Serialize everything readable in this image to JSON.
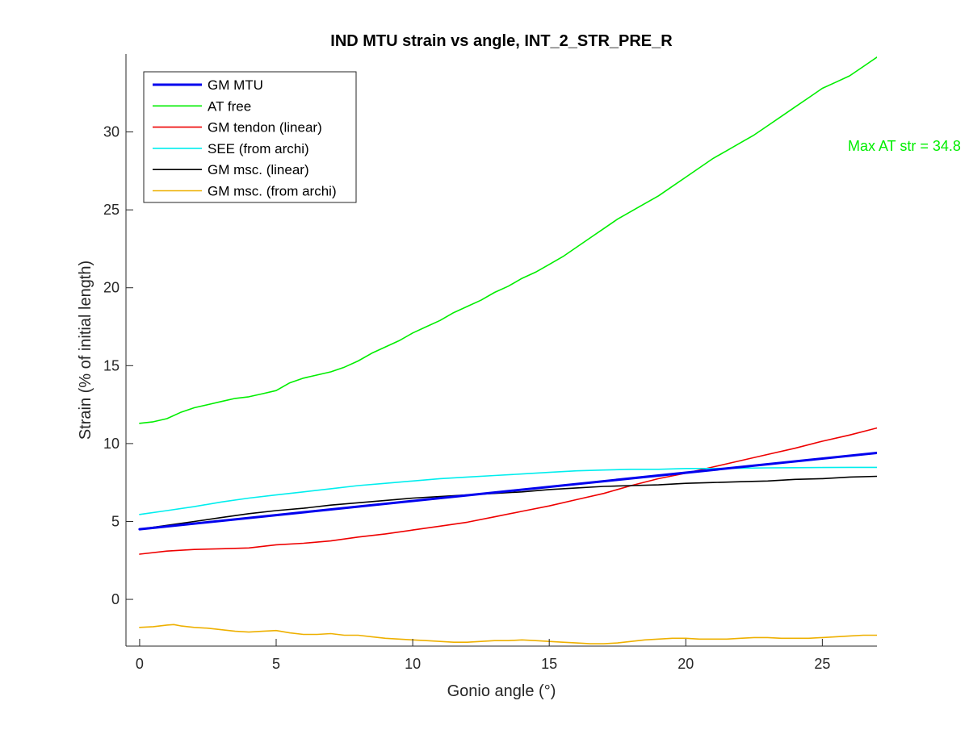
{
  "figure": {
    "background": "#ffffff"
  },
  "chart_data": {
    "type": "line",
    "title": "IND MTU strain vs angle, INT_2_STR_PRE_R",
    "xlabel": "Gonio angle (°)",
    "ylabel": "Strain (% of initial length)",
    "xlim": [
      -0.5,
      27
    ],
    "ylim": [
      -3,
      35
    ],
    "xticks": [
      0,
      5,
      10,
      15,
      20,
      25
    ],
    "yticks": [
      0,
      5,
      10,
      15,
      20,
      25,
      30
    ],
    "grid": false,
    "legend_position": "top-left",
    "annotation": {
      "text": "Max AT str = 34.8",
      "color": "#00ee00"
    },
    "series": [
      {
        "name": "GM MTU",
        "color": "#0000ee",
        "emphasis": "thick",
        "x": [
          0,
          27
        ],
        "y": [
          4.5,
          9.4
        ]
      },
      {
        "name": "AT free",
        "color": "#00ee00",
        "x": [
          0,
          0.5,
          1,
          1.5,
          2,
          2.5,
          3,
          3.5,
          4,
          4.5,
          5,
          5.5,
          6,
          6.5,
          7,
          7.5,
          8,
          8.5,
          9,
          9.5,
          10,
          10.5,
          11,
          11.5,
          12,
          12.5,
          13,
          13.5,
          14,
          14.5,
          15,
          15.5,
          16,
          16.5,
          17,
          17.5,
          18,
          18.5,
          19,
          19.5,
          20,
          20.5,
          21,
          21.5,
          22,
          22.5,
          23,
          23.5,
          24,
          24.5,
          25,
          25.5,
          26,
          26.5,
          27
        ],
        "y": [
          11.3,
          11.4,
          11.6,
          12.0,
          12.3,
          12.5,
          12.7,
          12.9,
          13.0,
          13.2,
          13.4,
          13.9,
          14.2,
          14.4,
          14.6,
          14.9,
          15.3,
          15.8,
          16.2,
          16.6,
          17.1,
          17.5,
          17.9,
          18.4,
          18.8,
          19.2,
          19.7,
          20.1,
          20.6,
          21.0,
          21.5,
          22.0,
          22.6,
          23.2,
          23.8,
          24.4,
          24.9,
          25.4,
          25.9,
          26.5,
          27.1,
          27.7,
          28.3,
          28.8,
          29.3,
          29.8,
          30.4,
          31.0,
          31.6,
          32.2,
          32.8,
          33.2,
          33.6,
          34.2,
          34.8
        ]
      },
      {
        "name": "GM tendon (linear)",
        "color": "#ee0000",
        "x": [
          0,
          1,
          2,
          3,
          4,
          5,
          6,
          7,
          8,
          9,
          10,
          11,
          12,
          13,
          14,
          15,
          16,
          17,
          18,
          19,
          20,
          21,
          22,
          23,
          24,
          25,
          26,
          27
        ],
        "y": [
          2.9,
          3.1,
          3.2,
          3.25,
          3.3,
          3.5,
          3.6,
          3.75,
          4.0,
          4.2,
          4.45,
          4.7,
          4.95,
          5.3,
          5.65,
          6.0,
          6.4,
          6.8,
          7.3,
          7.75,
          8.1,
          8.5,
          8.9,
          9.3,
          9.7,
          10.15,
          10.55,
          11.0
        ]
      },
      {
        "name": "SEE (from archi)",
        "color": "#00eeee",
        "x": [
          0,
          1,
          2,
          3,
          4,
          5,
          6,
          7,
          8,
          9,
          10,
          11,
          12,
          13,
          14,
          15,
          16,
          17,
          18,
          19,
          20,
          21,
          22,
          23,
          24,
          25,
          26,
          27
        ],
        "y": [
          5.45,
          5.7,
          5.95,
          6.25,
          6.5,
          6.7,
          6.9,
          7.1,
          7.3,
          7.45,
          7.6,
          7.75,
          7.85,
          7.95,
          8.05,
          8.15,
          8.25,
          8.3,
          8.35,
          8.35,
          8.4,
          8.4,
          8.42,
          8.44,
          8.45,
          8.46,
          8.47,
          8.47
        ]
      },
      {
        "name": "GM msc. (linear)",
        "color": "#000000",
        "x": [
          0,
          1,
          2,
          3,
          4,
          5,
          6,
          7,
          8,
          9,
          10,
          11,
          12,
          13,
          14,
          15,
          16,
          17,
          18,
          19,
          20,
          21,
          22,
          23,
          24,
          25,
          26,
          27
        ],
        "y": [
          4.5,
          4.75,
          5.0,
          5.25,
          5.5,
          5.7,
          5.85,
          6.05,
          6.2,
          6.35,
          6.5,
          6.6,
          6.7,
          6.8,
          6.9,
          7.05,
          7.15,
          7.25,
          7.3,
          7.35,
          7.45,
          7.5,
          7.55,
          7.6,
          7.7,
          7.75,
          7.85,
          7.9
        ]
      },
      {
        "name": "GM msc. (from archi)",
        "color": "#eeb000",
        "x": [
          0,
          0.5,
          1,
          1.25,
          1.5,
          2,
          2.5,
          3,
          3.5,
          4,
          4.5,
          5,
          5.5,
          6,
          6.5,
          7,
          7.5,
          8,
          8.5,
          9,
          9.5,
          10,
          10.5,
          11,
          11.5,
          12,
          12.5,
          13,
          13.5,
          14,
          14.5,
          15,
          15.5,
          16,
          16.5,
          17,
          17.5,
          18,
          18.5,
          19,
          19.5,
          20,
          20.5,
          21,
          21.5,
          22,
          22.5,
          23,
          23.5,
          24,
          24.5,
          25,
          25.5,
          26,
          26.5,
          27
        ],
        "y": [
          -1.8,
          -1.75,
          -1.65,
          -1.62,
          -1.7,
          -1.8,
          -1.85,
          -1.95,
          -2.05,
          -2.1,
          -2.05,
          -2.0,
          -2.15,
          -2.25,
          -2.25,
          -2.2,
          -2.3,
          -2.3,
          -2.4,
          -2.5,
          -2.55,
          -2.6,
          -2.65,
          -2.7,
          -2.75,
          -2.75,
          -2.7,
          -2.65,
          -2.65,
          -2.6,
          -2.65,
          -2.7,
          -2.75,
          -2.8,
          -2.85,
          -2.85,
          -2.8,
          -2.7,
          -2.6,
          -2.55,
          -2.5,
          -2.5,
          -2.55,
          -2.55,
          -2.55,
          -2.5,
          -2.45,
          -2.45,
          -2.5,
          -2.5,
          -2.5,
          -2.45,
          -2.4,
          -2.35,
          -2.3,
          -2.3
        ]
      }
    ]
  }
}
